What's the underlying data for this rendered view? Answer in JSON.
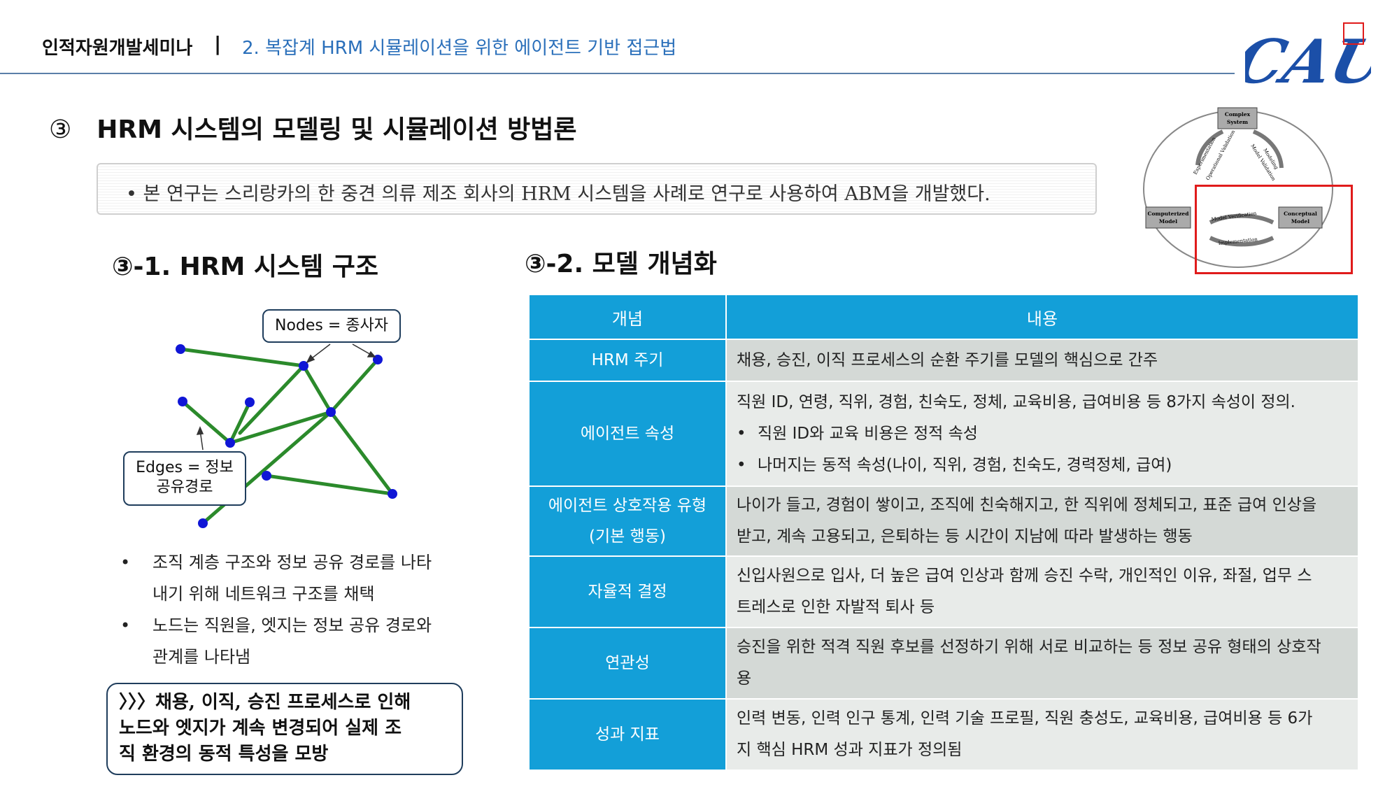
{
  "header": {
    "org": "인적자원개발세미나",
    "separator": "|",
    "subtitle": "2. 복잡계 HRM 시뮬레이션을 위한 에이전트 기반 접근법",
    "logo_text": "CAU"
  },
  "section": {
    "number": "③",
    "title": "HRM 시스템의 모델링 및 시뮬레이션 방법론"
  },
  "intro": {
    "bullet": "•",
    "text": "본 연구는 스리랑카의 한 중견 의류 제조 회사의 HRM 시스템을 사례로 연구로 사용하여 ABM을 개발했다."
  },
  "left": {
    "heading": "③-1. HRM 시스템 구조",
    "callout_nodes": "Nodes = 종사자",
    "callout_edges_line1": "Edges = 정보",
    "callout_edges_line2": "공유경로",
    "bullets": [
      {
        "dot": "•",
        "line1": "조직 계층 구조와 정보 공유 경로를 나타",
        "line2": "내기 위해 네트워크 구조를 채택"
      },
      {
        "dot": "•",
        "line1": "노드는 직원을, 엣지는 정보 공유 경로와",
        "line2": "관계를 나타냄"
      }
    ],
    "conclusion": {
      "line1": "〉〉〉채용, 이직, 승진 프로세스로 인해",
      "line2": "노드와 엣지가 계속 변경되어 실제 조",
      "line3": "직 환경의 동적 특성을 모방"
    }
  },
  "right": {
    "heading": "③-2. 모델 개념화",
    "table": {
      "col1": "개념",
      "col2": "내용",
      "rows": [
        {
          "k1": "HRM 주기",
          "k2": "",
          "v": [
            "채용, 승진, 이직 프로세스의 순환 주기를 모델의 핵심으로 간주"
          ]
        },
        {
          "k1": "에이전트 속성",
          "k2": "",
          "v": [
            "직원 ID, 연령, 직위, 경험, 친숙도, 정체, 교육비용, 급여비용 등 8가지 속성이 정의.",
            "직원 ID와 교육 비용은 정적 속성",
            "나머지는 동적 속성(나이, 직위, 경험, 친숙도, 경력정체, 급여)"
          ]
        },
        {
          "k1": "에이전트 상호작용 유형",
          "k2": "(기본 행동)",
          "v": [
            "나이가 들고, 경험이 쌓이고, 조직에 친숙해지고, 한 직위에 정체되고, 표준 급여 인상을",
            "받고, 계속 고용되고, 은퇴하는 등 시간이 지남에 따라 발생하는 행동"
          ]
        },
        {
          "k1": "자율적 결정",
          "k2": "",
          "v": [
            "신입사원으로 입사, 더 높은 급여 인상과 함께 승진 수락, 개인적인 이유, 좌절, 업무 스",
            "트레스로 인한 자발적 퇴사 등"
          ]
        },
        {
          "k1": "연관성",
          "k2": "",
          "v": [
            "승진을 위한 적격 직원 후보를 선정하기 위해 서로 비교하는 등 정보 공유 형태의 상호작",
            "용"
          ]
        },
        {
          "k1": "성과 지표",
          "k2": "",
          "v": [
            "인력 변동, 인력 인구 통계, 인력 기술 프로필, 직원 충성도, 교육비용, 급여비용 등 6가",
            "지 핵심 HRM 성과 지표가 정의됨"
          ]
        }
      ],
      "bullet": "•"
    }
  },
  "cycle": {
    "complex_system_1": "Complex",
    "complex_system_2": "System",
    "computerized_1": "Computerized",
    "computerized_2": "Model",
    "conceptual_1": "Conceptual",
    "conceptual_2": "Model",
    "modeling": "Modeling",
    "model_validation": "Model Validation",
    "experimentation": "Experimentation",
    "operational_validation": "Operational Validation",
    "model_verification": "Model Verification",
    "implementation": "Implementation"
  },
  "colors": {
    "accent_blue": "#139fd8",
    "header_blue": "#2a6fba",
    "logo_blue": "#1b4fa8",
    "highlight_red": "#e01b1b",
    "network_green": "#2b8a2b",
    "node_blue": "#1016d6"
  }
}
